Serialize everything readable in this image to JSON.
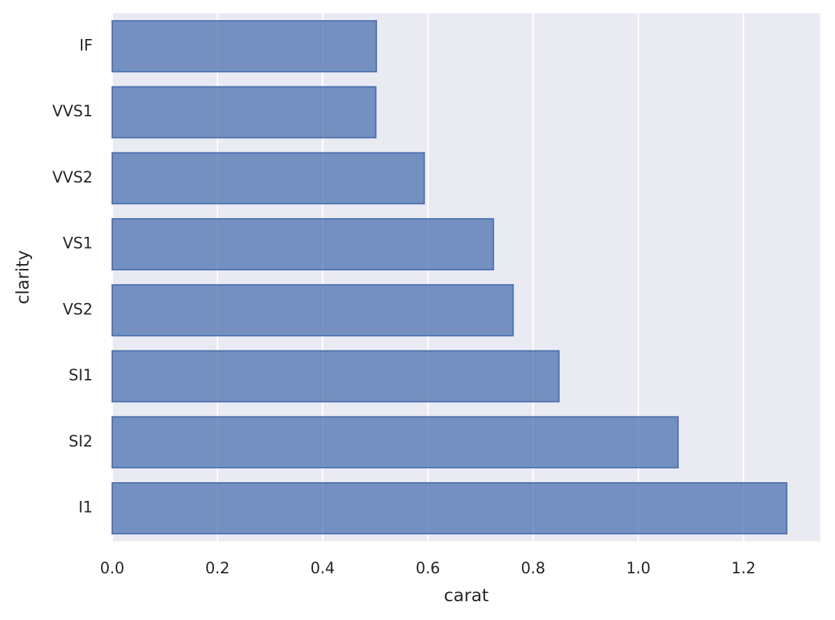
{
  "chart_data": {
    "type": "barh",
    "categories": [
      "IF",
      "VVS1",
      "VVS2",
      "VS1",
      "VS2",
      "SI1",
      "SI2",
      "I1"
    ],
    "values": [
      0.502,
      0.501,
      0.593,
      0.7245,
      0.762,
      0.849,
      1.0755,
      1.282
    ],
    "color": "#4c72b0",
    "xlabel": "carat",
    "ylabel": "clarity",
    "xlim": [
      0,
      1.346
    ],
    "xticks": [
      {
        "value": 0,
        "label": "0.0"
      },
      0.2,
      0.4,
      0.6,
      0.8,
      {
        "value": 1,
        "label": "1.0"
      },
      1.2
    ],
    "grid": true
  }
}
